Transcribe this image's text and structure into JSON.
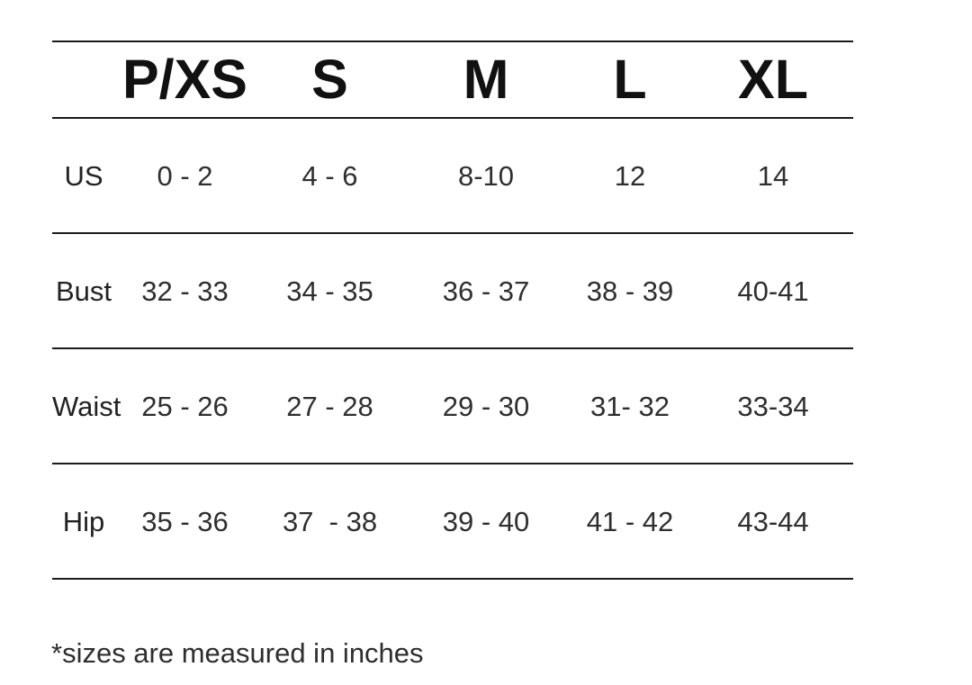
{
  "chart_data": {
    "type": "table",
    "columns": [
      "P/XS",
      "S",
      "M",
      "L",
      "XL"
    ],
    "rows": [
      {
        "label": "US",
        "values": [
          "0 - 2",
          "4 - 6",
          "8-10",
          "12",
          "14"
        ]
      },
      {
        "label": "Bust",
        "values": [
          "32 - 33",
          "34 - 35",
          "36 - 37",
          "38 - 39",
          "40-41"
        ]
      },
      {
        "label": "Waist",
        "values": [
          "25 - 26",
          "27 - 28",
          "29 - 30",
          "31- 32",
          "33-34"
        ]
      },
      {
        "label": "Hip",
        "values": [
          "35 - 36",
          "37  - 38",
          "39 - 40",
          "41 - 42",
          "43-44"
        ]
      }
    ],
    "layout": {
      "gridlines": "horizontal rules only",
      "legend": "none",
      "header_style": "bold"
    }
  },
  "footnote": "*sizes are measured in inches",
  "colors": {
    "background": "#ffffff",
    "rule": "#1b1b1b",
    "header_text": "#111111",
    "body_text": "#2f2f2f"
  }
}
